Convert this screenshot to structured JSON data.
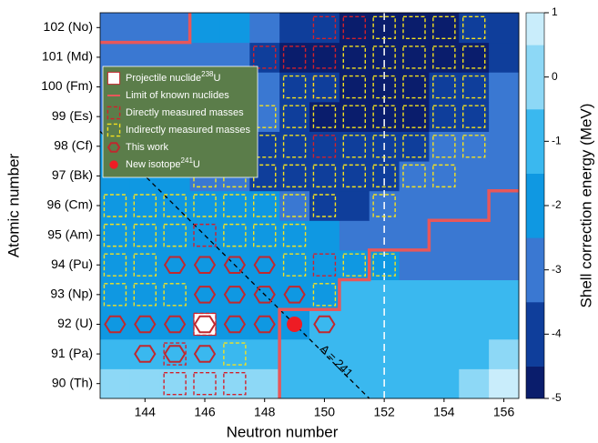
{
  "chart_data": {
    "type": "heatmap",
    "xlabel": "Neutron number",
    "ylabel": "Atomic number",
    "colorbar_label": "Shell correction energy (MeV)",
    "x": [
      143,
      144,
      145,
      146,
      147,
      148,
      149,
      150,
      151,
      152,
      153,
      154,
      155,
      156
    ],
    "y": [
      90,
      91,
      92,
      93,
      94,
      95,
      96,
      97,
      98,
      99,
      100,
      101,
      102
    ],
    "z": [
      [
        0,
        0,
        0,
        0,
        0,
        0,
        -1,
        -1,
        -1,
        -1,
        -1,
        -1,
        0,
        0.7
      ],
      [
        -1,
        -1,
        -1,
        -1,
        -1,
        -1,
        -1,
        -1,
        -1,
        -1,
        -1,
        -1,
        -1,
        0
      ],
      [
        -2,
        -2,
        -2,
        -2,
        -2,
        -2,
        -2,
        -1,
        -1,
        -1,
        -1,
        -1,
        -1,
        -1
      ],
      [
        -2,
        -2,
        -2,
        -2,
        -2,
        -2,
        -2,
        -2,
        -1,
        -1,
        -1,
        -1,
        -1,
        -1
      ],
      [
        -2,
        -2,
        -2,
        -2,
        -2,
        -2,
        -2,
        -2,
        -2,
        -2,
        -3,
        -3,
        -3,
        -3
      ],
      [
        -2,
        -2,
        -2,
        -2,
        -2,
        -2,
        -2,
        -2,
        -3,
        -3,
        -3,
        -3,
        -3,
        -3
      ],
      [
        -2,
        -2,
        -2,
        -2,
        -2,
        -2,
        -3,
        -4,
        -4,
        -3,
        -3,
        -3,
        -3,
        -3
      ],
      [
        -2,
        -2,
        -2,
        -3,
        -3,
        -4,
        -4,
        -4,
        -4,
        -4,
        -3,
        -3,
        -3,
        -3
      ],
      [
        -2,
        -2,
        -3,
        -3,
        -3,
        -4,
        -4,
        -4,
        -4,
        -4,
        -4,
        -3,
        -3,
        -3
      ],
      [
        -3,
        -3,
        -3,
        -3,
        -3,
        -3,
        -4,
        -4.8,
        -4.8,
        -4.8,
        -4.8,
        -4,
        -4,
        -3
      ],
      [
        -3,
        -3,
        -3,
        -3,
        -3,
        -3,
        -4,
        -4,
        -4.8,
        -4.8,
        -4.8,
        -4,
        -4,
        -3
      ],
      [
        -3,
        -3,
        -3,
        -3,
        -3,
        -4,
        -4.8,
        -4.8,
        -4.8,
        -4.8,
        -4.8,
        -4.8,
        -4.8,
        -4
      ],
      [
        -3,
        -3,
        -3,
        -2,
        -2,
        -3,
        -4,
        -4,
        -4.8,
        -4.8,
        -4.8,
        -4.8,
        -4,
        -4
      ]
    ],
    "xlim": [
      142.5,
      156.5
    ],
    "ylim": [
      89.5,
      102.5
    ],
    "xticks": [
      144,
      146,
      148,
      150,
      152,
      154,
      156
    ],
    "yticks": [
      {
        "value": 90,
        "label": "90 (Th)"
      },
      {
        "value": 91,
        "label": "91 (Pa)"
      },
      {
        "value": 92,
        "label": "92 (U)"
      },
      {
        "value": 93,
        "label": "93 (Np)"
      },
      {
        "value": 94,
        "label": "94 (Pu)"
      },
      {
        "value": 95,
        "label": "95 (Am)"
      },
      {
        "value": 96,
        "label": "96 (Cm)"
      },
      {
        "value": 97,
        "label": "97 (Bk)"
      },
      {
        "value": 98,
        "label": "98 (Cf)"
      },
      {
        "value": 99,
        "label": "99 (Es)"
      },
      {
        "value": 100,
        "label": "100 (Fm)"
      },
      {
        "value": 101,
        "label": "101 (Md)"
      },
      {
        "value": 102,
        "label": "102 (No)"
      }
    ],
    "clim": [
      -5,
      1
    ],
    "cticks": [
      -5,
      -4,
      -3,
      -2,
      -1,
      0,
      1
    ],
    "levels": [
      -5,
      -4.5,
      -3.5,
      -2.5,
      -1.5,
      -0.5,
      0.5,
      1
    ],
    "colors": [
      "#0a1d6c",
      "#0f3e9b",
      "#3a78d2",
      "#0f98e2",
      "#3ab8ef",
      "#8dd8f6",
      "#c9edfb"
    ],
    "guide_line": {
      "x": 152,
      "color": "#ffffff"
    },
    "isobar": {
      "A": 241,
      "label": "A = 241",
      "color": "#000000"
    },
    "legend_color": "#5b7d4a",
    "series": [
      {
        "name": "Projectile nuclide",
        "sup": "238",
        "suffix": "U",
        "marker": "square",
        "color": "#ffffff",
        "x": [
          146
        ],
        "y": [
          92
        ]
      },
      {
        "name": "Limit of known nuclides",
        "marker": "line",
        "color": "#e8575a",
        "x": [
          148.5,
          148.5,
          150.5,
          150.5,
          151.5,
          151.5,
          153.5,
          153.5,
          155.5,
          155.5,
          156.5,
          null,
          142.5,
          145.5,
          145.5
        ],
        "y": [
          89.5,
          92.5,
          92.5,
          93.5,
          93.5,
          94.5,
          94.5,
          95.5,
          95.5,
          96.5,
          96.5,
          null,
          101.5,
          101.5,
          102.5
        ]
      },
      {
        "name": "Directly measured masses",
        "marker": "dashed-square",
        "color": "#d4202a",
        "x": [
          146,
          150,
          148,
          149,
          150,
          150,
          151,
          150,
          150,
          146,
          147,
          145,
          146,
          145
        ],
        "y": [
          95,
          94,
          101,
          101,
          101,
          102,
          102,
          100,
          98,
          90,
          90,
          91,
          92,
          90
        ]
      },
      {
        "name": "Indirectly measured masses",
        "marker": "dashed-square",
        "color": "#f5e11e",
        "x": [
          143,
          144,
          145,
          146,
          147,
          148,
          149,
          150,
          152,
          143,
          144,
          145,
          147,
          148,
          149,
          143,
          144,
          149,
          151,
          152,
          143,
          144,
          145,
          150,
          147,
          146,
          147,
          148,
          149,
          150,
          151,
          152,
          153,
          154,
          146,
          147,
          148,
          149,
          151,
          152,
          153,
          154,
          155,
          148,
          149,
          150,
          151,
          152,
          153,
          154,
          155,
          149,
          150,
          151,
          152,
          153,
          154,
          155,
          151,
          152,
          153,
          154,
          155,
          152,
          153,
          154,
          155
        ],
        "y": [
          96,
          96,
          96,
          96,
          96,
          96,
          96,
          96,
          96,
          95,
          95,
          95,
          95,
          95,
          95,
          94,
          94,
          94,
          94,
          94,
          93,
          93,
          93,
          93,
          91,
          97,
          97,
          97,
          97,
          97,
          97,
          97,
          97,
          97,
          98,
          98,
          98,
          98,
          98,
          98,
          98,
          98,
          98,
          99,
          99,
          99,
          99,
          99,
          99,
          99,
          99,
          100,
          100,
          100,
          100,
          100,
          100,
          100,
          101,
          101,
          101,
          101,
          101,
          102,
          102,
          102,
          102
        ]
      },
      {
        "name": "This work",
        "marker": "hexagon",
        "color": "#c0282e",
        "x": [
          145,
          146,
          147,
          148,
          146,
          147,
          148,
          149,
          143,
          144,
          145,
          146,
          147,
          148,
          150,
          144,
          145,
          146
        ],
        "y": [
          94,
          94,
          94,
          94,
          93,
          93,
          93,
          93,
          92,
          92,
          92,
          92,
          92,
          92,
          92,
          91,
          91,
          91
        ]
      },
      {
        "name": "New isotope",
        "sup": "241",
        "suffix": "U",
        "marker": "circle",
        "color": "#ee1c24",
        "x": [
          149
        ],
        "y": [
          92
        ]
      }
    ]
  }
}
